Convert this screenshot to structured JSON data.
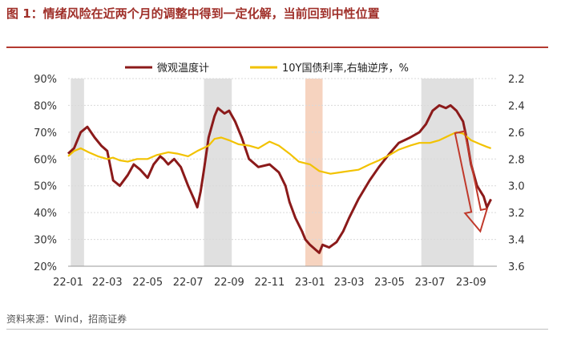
{
  "figure": {
    "title": "图 1：情绪风险在近两个月的调整中得到一定化解，当前回到中性位置",
    "source": "资料来源：Wind，招商证券"
  },
  "chart_data": {
    "type": "line",
    "title": "",
    "xlabel": "",
    "ylabel": "",
    "x_ticks": [
      "22-01",
      "22-03",
      "22-05",
      "22-07",
      "22-09",
      "22-11",
      "23-01",
      "23-03",
      "23-05",
      "23-07",
      "23-09"
    ],
    "y_left_ticks": [
      "20%",
      "30%",
      "40%",
      "50%",
      "60%",
      "70%",
      "80%",
      "90%"
    ],
    "y_right_ticks": [
      "2.2",
      "2.4",
      "2.6",
      "2.8",
      "3.0",
      "3.2",
      "3.4",
      "3.6"
    ],
    "ylim_left": [
      20,
      90
    ],
    "ylim_right_inverted": [
      2.2,
      3.6
    ],
    "legend_position": "top",
    "colors": {
      "temperature": "#8b1a1a",
      "yield": "#f2c200",
      "shade_gray": "#e0e0e0",
      "shade_orange": "#f6d3bf",
      "arrow": "#c0392b"
    },
    "shaded_regions": [
      {
        "from": "22-01-05",
        "to": "22-01-25",
        "color": "gray"
      },
      {
        "from": "22-07-25",
        "to": "22-09-05",
        "color": "gray"
      },
      {
        "from": "22-12-25",
        "to": "23-01-20",
        "color": "orange"
      },
      {
        "from": "23-06-18",
        "to": "23-09-05",
        "color": "gray"
      }
    ],
    "series": [
      {
        "name": "微观温度计",
        "axis": "left",
        "points": [
          [
            "22-01-01",
            62
          ],
          [
            "22-01-10",
            64
          ],
          [
            "22-01-20",
            70
          ],
          [
            "22-01-30",
            72
          ],
          [
            "22-02-10",
            68
          ],
          [
            "22-02-20",
            65
          ],
          [
            "22-03-01",
            63
          ],
          [
            "22-03-10",
            52
          ],
          [
            "22-03-20",
            50
          ],
          [
            "22-04-01",
            54
          ],
          [
            "22-04-10",
            58
          ],
          [
            "22-04-20",
            56
          ],
          [
            "22-05-01",
            53
          ],
          [
            "22-05-10",
            58
          ],
          [
            "22-05-20",
            61
          ],
          [
            "22-05-25",
            60
          ],
          [
            "22-06-01",
            58
          ],
          [
            "22-06-10",
            60
          ],
          [
            "22-06-20",
            57
          ],
          [
            "22-07-01",
            50
          ],
          [
            "22-07-10",
            45
          ],
          [
            "22-07-15",
            42
          ],
          [
            "22-07-20",
            48
          ],
          [
            "22-07-25",
            56
          ],
          [
            "22-08-01",
            68
          ],
          [
            "22-08-10",
            76
          ],
          [
            "22-08-15",
            79
          ],
          [
            "22-08-25",
            77
          ],
          [
            "22-09-01",
            78
          ],
          [
            "22-09-10",
            74
          ],
          [
            "22-09-20",
            68
          ],
          [
            "22-10-01",
            60
          ],
          [
            "22-10-15",
            57
          ],
          [
            "22-11-01",
            58
          ],
          [
            "22-11-15",
            55
          ],
          [
            "22-11-25",
            50
          ],
          [
            "22-12-01",
            44
          ],
          [
            "22-12-10",
            38
          ],
          [
            "22-12-20",
            33
          ],
          [
            "22-12-25",
            30
          ],
          [
            "23-01-01",
            28
          ],
          [
            "23-01-10",
            26
          ],
          [
            "23-01-15",
            25
          ],
          [
            "23-01-20",
            28
          ],
          [
            "23-01-30",
            27
          ],
          [
            "23-02-10",
            29
          ],
          [
            "23-02-20",
            33
          ],
          [
            "23-03-01",
            38
          ],
          [
            "23-03-15",
            45
          ],
          [
            "23-04-01",
            52
          ],
          [
            "23-04-15",
            57
          ],
          [
            "23-05-01",
            62
          ],
          [
            "23-05-15",
            66
          ],
          [
            "23-06-01",
            68
          ],
          [
            "23-06-15",
            70
          ],
          [
            "23-06-25",
            73
          ],
          [
            "23-07-05",
            78
          ],
          [
            "23-07-15",
            80
          ],
          [
            "23-07-25",
            79
          ],
          [
            "23-08-01",
            80
          ],
          [
            "23-08-10",
            78
          ],
          [
            "23-08-20",
            74
          ],
          [
            "23-08-25",
            68
          ],
          [
            "23-09-01",
            58
          ],
          [
            "23-09-10",
            50
          ],
          [
            "23-09-20",
            46
          ],
          [
            "23-09-25",
            42
          ],
          [
            "23-10-01",
            45
          ]
        ]
      },
      {
        "name": "10Y国债利率,右轴逆序，%",
        "axis": "right",
        "points": [
          [
            "22-01-01",
            2.78
          ],
          [
            "22-01-10",
            2.74
          ],
          [
            "22-01-20",
            2.72
          ],
          [
            "22-02-01",
            2.75
          ],
          [
            "22-02-15",
            2.78
          ],
          [
            "22-03-01",
            2.8
          ],
          [
            "22-03-10",
            2.79
          ],
          [
            "22-03-20",
            2.81
          ],
          [
            "22-04-01",
            2.82
          ],
          [
            "22-04-15",
            2.8
          ],
          [
            "22-05-01",
            2.8
          ],
          [
            "22-05-15",
            2.77
          ],
          [
            "22-06-01",
            2.75
          ],
          [
            "22-06-15",
            2.76
          ],
          [
            "22-07-01",
            2.78
          ],
          [
            "22-07-15",
            2.74
          ],
          [
            "22-08-01",
            2.7
          ],
          [
            "22-08-10",
            2.65
          ],
          [
            "22-08-20",
            2.64
          ],
          [
            "22-09-01",
            2.66
          ],
          [
            "22-09-15",
            2.69
          ],
          [
            "22-10-01",
            2.7
          ],
          [
            "22-10-15",
            2.72
          ],
          [
            "22-11-01",
            2.67
          ],
          [
            "22-11-15",
            2.7
          ],
          [
            "22-12-01",
            2.76
          ],
          [
            "22-12-15",
            2.82
          ],
          [
            "23-01-01",
            2.84
          ],
          [
            "23-01-15",
            2.89
          ],
          [
            "23-02-01",
            2.91
          ],
          [
            "23-02-15",
            2.9
          ],
          [
            "23-03-01",
            2.89
          ],
          [
            "23-03-15",
            2.88
          ],
          [
            "23-04-01",
            2.84
          ],
          [
            "23-04-15",
            2.81
          ],
          [
            "23-05-01",
            2.77
          ],
          [
            "23-05-15",
            2.73
          ],
          [
            "23-06-01",
            2.7
          ],
          [
            "23-06-15",
            2.68
          ],
          [
            "23-07-01",
            2.68
          ],
          [
            "23-07-15",
            2.66
          ],
          [
            "23-08-01",
            2.62
          ],
          [
            "23-08-10",
            2.6
          ],
          [
            "23-08-20",
            2.61
          ],
          [
            "23-09-01",
            2.66
          ],
          [
            "23-09-15",
            2.69
          ],
          [
            "23-09-25",
            2.71
          ],
          [
            "23-10-01",
            2.72
          ]
        ]
      }
    ],
    "annotation": {
      "type": "arrow",
      "from": [
        "23-08-15",
        70
      ],
      "to": [
        "23-09-15",
        33
      ]
    }
  }
}
